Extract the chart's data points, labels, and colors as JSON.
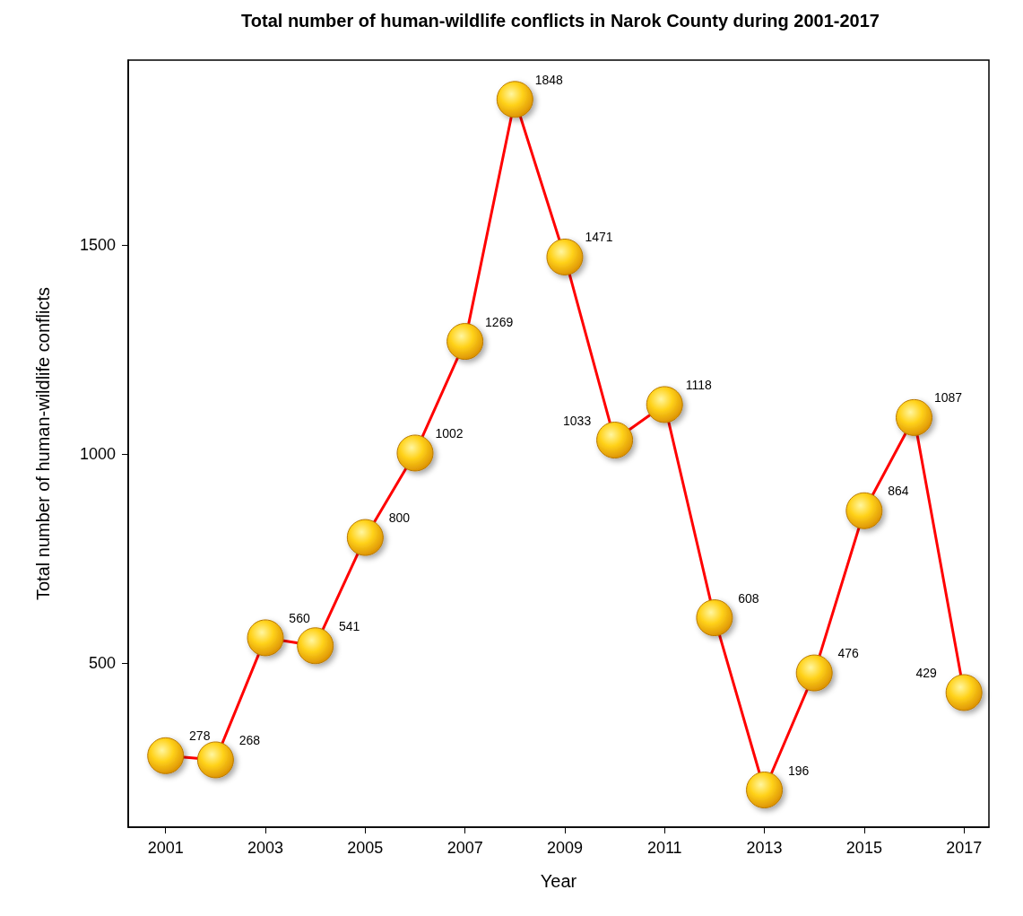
{
  "chart_data": {
    "type": "line",
    "title": "Total number of human-wildlife conflicts in Narok County during 2001-2017",
    "xlabel": "Year",
    "ylabel": "Total number of human-wildlife conflicts",
    "x": [
      2001,
      2002,
      2003,
      2004,
      2005,
      2006,
      2007,
      2008,
      2009,
      2010,
      2011,
      2012,
      2013,
      2014,
      2015,
      2016,
      2017
    ],
    "series": [
      {
        "color": "#ff0000",
        "values": [
          278,
          268,
          560,
          541,
          800,
          1002,
          1269,
          1848,
          1471,
          1033,
          1118,
          608,
          196,
          476,
          864,
          1087,
          429
        ]
      }
    ],
    "xlim": [
      2000.25,
      2017.5
    ],
    "xticks": [
      2001,
      2003,
      2005,
      2007,
      2009,
      2011,
      2013,
      2015,
      2017
    ],
    "ylim": [
      107,
      1942
    ],
    "yticks": [
      500,
      1000,
      1500
    ],
    "data_labels": true,
    "grid": false,
    "marker": "circle",
    "line_style": "solid"
  }
}
